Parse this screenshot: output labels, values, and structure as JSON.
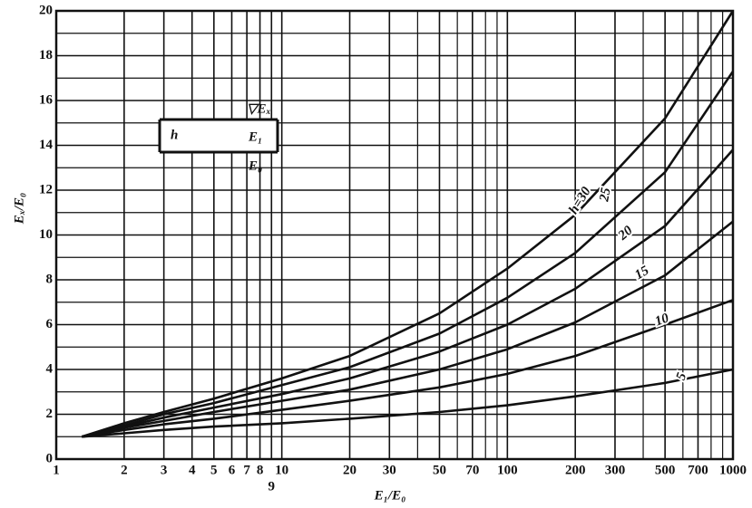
{
  "chart_data": {
    "type": "line",
    "xlabel": "E₁/E₀",
    "ylabel": "Eₓ/E₀",
    "x": [
      1.3,
      2,
      3,
      5,
      10,
      20,
      50,
      100,
      200,
      500,
      1000
    ],
    "series": [
      {
        "name": "h=30",
        "color": "#111111",
        "values": [
          1,
          1.6,
          2.1,
          2.7,
          3.6,
          4.6,
          6.5,
          8.5,
          10.9,
          15.2,
          20
        ]
      },
      {
        "name": "25",
        "color": "#111111",
        "values": [
          1,
          1.5,
          2.0,
          2.5,
          3.3,
          4.1,
          5.6,
          7.2,
          9.2,
          12.8,
          17.3
        ]
      },
      {
        "name": "20",
        "color": "#111111",
        "values": [
          1,
          1.45,
          1.85,
          2.3,
          2.9,
          3.6,
          4.8,
          6.0,
          7.6,
          10.4,
          13.8
        ]
      },
      {
        "name": "15",
        "color": "#111111",
        "values": [
          1,
          1.4,
          1.7,
          2.1,
          2.6,
          3.1,
          4.0,
          4.9,
          6.1,
          8.2,
          10.6
        ]
      },
      {
        "name": "10",
        "color": "#111111",
        "values": [
          1,
          1.3,
          1.55,
          1.8,
          2.2,
          2.6,
          3.2,
          3.8,
          4.6,
          6.0,
          7.1
        ]
      },
      {
        "name": "5",
        "color": "#111111",
        "values": [
          1,
          1.15,
          1.3,
          1.45,
          1.6,
          1.8,
          2.1,
          2.4,
          2.8,
          3.4,
          4.0
        ]
      }
    ],
    "xlog": true,
    "xlim": [
      1,
      1000
    ],
    "xticks": [
      1,
      2,
      3,
      4,
      5,
      6,
      7,
      8,
      9,
      10,
      20,
      30,
      50,
      70,
      100,
      200,
      300,
      500,
      700,
      1000
    ],
    "xminor": [
      40,
      60,
      80,
      90,
      400,
      600,
      800,
      900
    ],
    "ylim": [
      0,
      20
    ],
    "yticks": [
      0,
      2,
      4,
      6,
      8,
      10,
      12,
      14,
      16,
      18,
      20
    ],
    "yminor": [
      1,
      3,
      5,
      7,
      9,
      11,
      13,
      15,
      17,
      19
    ],
    "grid": true,
    "inset": {
      "top": "▽Eₓ",
      "left": "h",
      "middle": "E₁",
      "bottom": "E₀"
    }
  }
}
